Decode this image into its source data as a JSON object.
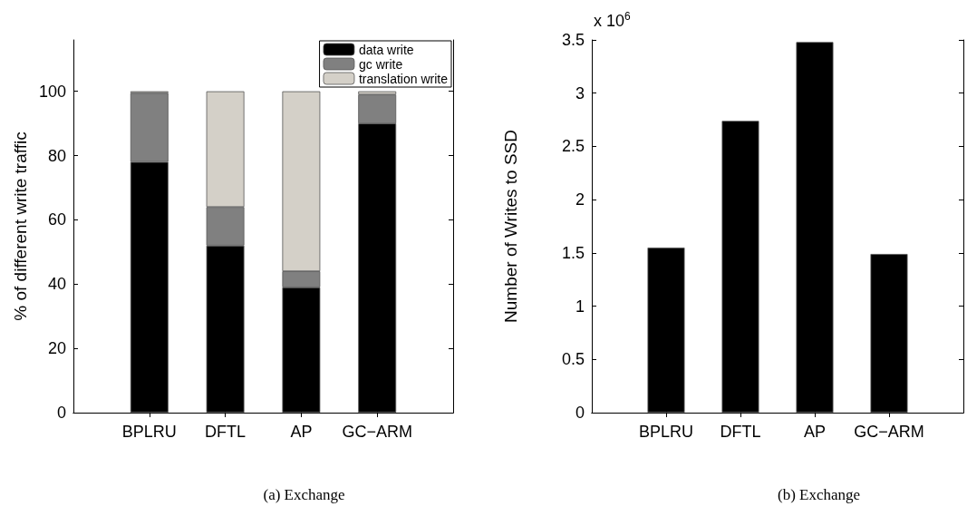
{
  "chart_data": [
    {
      "type": "bar",
      "stacked": true,
      "ylabel": "% of different write traffic",
      "categories": [
        "BPLRU",
        "DFTL",
        "AP",
        "GC−ARM"
      ],
      "series": [
        {
          "name": "data write",
          "color": "#000000",
          "values": [
            78,
            52,
            39,
            90
          ]
        },
        {
          "name": "gc write",
          "color": "#808080",
          "values": [
            21.5,
            12,
            5,
            9
          ]
        },
        {
          "name": "translation write",
          "color": "#d4d0c8",
          "values": [
            0.5,
            36,
            56,
            1
          ]
        }
      ],
      "ylim": [
        0,
        116
      ],
      "yticks": [
        0,
        20,
        40,
        60,
        80,
        100
      ],
      "legend": "top right",
      "annotations": [
        "(a) Exchange"
      ]
    },
    {
      "type": "bar",
      "ylabel": "Number of Writes to SSD",
      "categories": [
        "BPLRU",
        "DFTL",
        "AP",
        "GC−ARM"
      ],
      "series": [
        {
          "color": "#000000",
          "values": [
            1.55,
            2.74,
            3.48,
            1.49
          ]
        }
      ],
      "ylim": [
        0,
        3.5
      ],
      "yticks": [
        0,
        0.5,
        1,
        1.5,
        2,
        2.5,
        3,
        3.5
      ],
      "annotations": [
        "x 10$^{6}$",
        "(b) Exchange"
      ]
    }
  ]
}
